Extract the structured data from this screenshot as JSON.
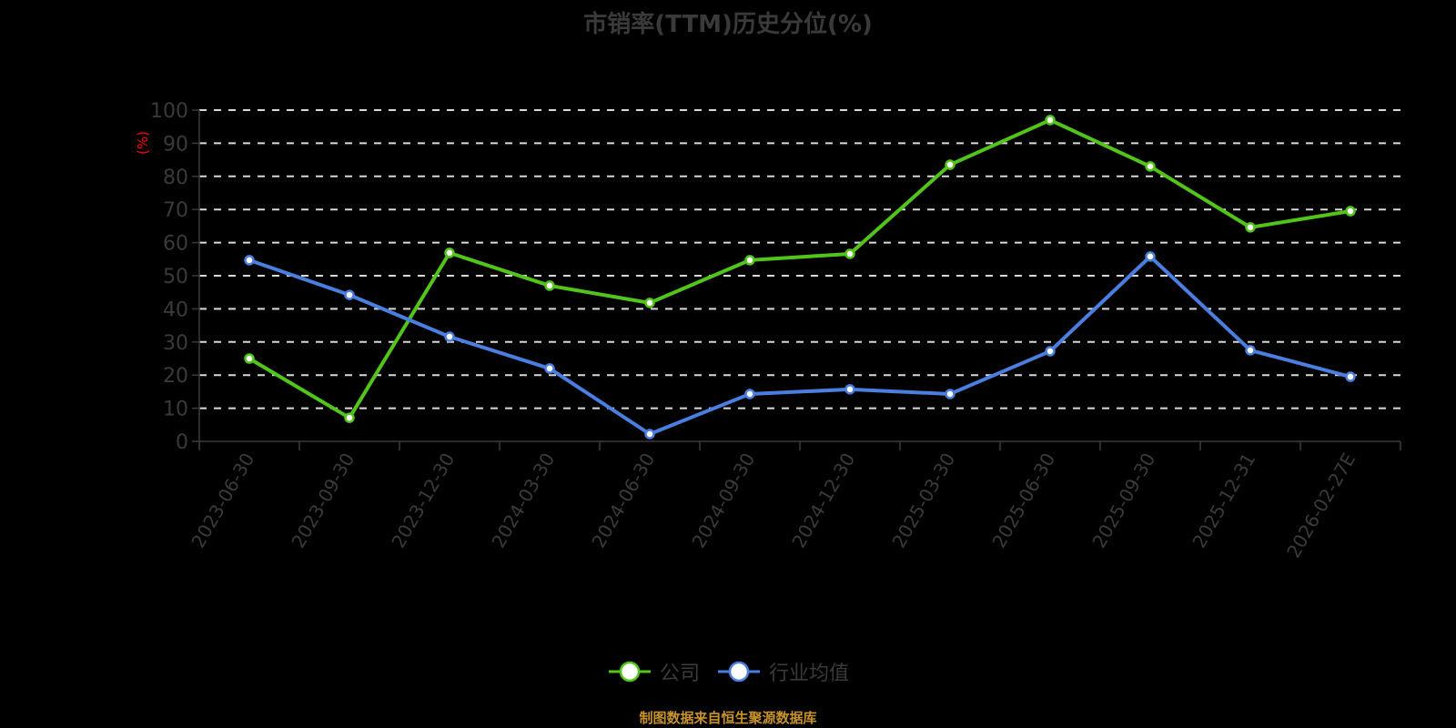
{
  "title": "市销率(TTM)历史分位(%)",
  "y_axis_label": "(%)",
  "legend": [
    {
      "label": "公司",
      "color": "#52c41a"
    },
    {
      "label": "行业均值",
      "color": "#4a7fe0"
    }
  ],
  "footer": "制图数据来自恒生聚源数据库",
  "chart_data": {
    "type": "line",
    "title": "市销率(TTM)历史分位(%)",
    "xlabel": "",
    "ylabel": "(%)",
    "ylim": [
      0,
      100
    ],
    "yticks": [
      0,
      10,
      20,
      30,
      40,
      50,
      60,
      70,
      80,
      90,
      100
    ],
    "grid": true,
    "legend_position": "bottom",
    "categories": [
      "2023-06-30",
      "2023-09-30",
      "2023-12-30",
      "2024-03-30",
      "2024-06-30",
      "2024-09-30",
      "2024-12-30",
      "2025-03-30",
      "2025-06-30",
      "2025-09-30",
      "2025-12-31",
      "2026-02-27E"
    ],
    "series": [
      {
        "name": "公司",
        "color": "#52c41a",
        "values": [
          25.0,
          7.1,
          56.9,
          47.0,
          41.8,
          54.7,
          56.6,
          83.5,
          97.0,
          83.0,
          64.6,
          69.5
        ]
      },
      {
        "name": "行业均值",
        "color": "#4a7fe0",
        "values": [
          54.7,
          44.2,
          31.6,
          22.0,
          2.2,
          14.3,
          15.7,
          14.3,
          27.2,
          55.8,
          27.5,
          19.5
        ]
      }
    ]
  }
}
